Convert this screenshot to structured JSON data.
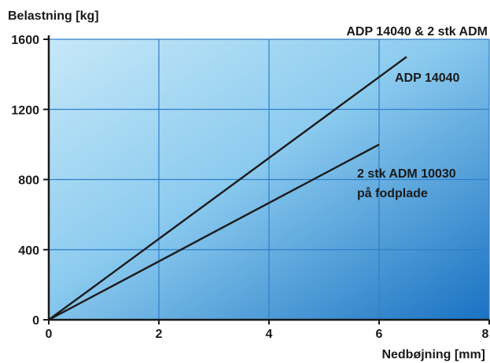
{
  "chart_data": {
    "type": "line",
    "title": "ADP 14040 & 2 stk ADM",
    "ylabel": "Belastning [kg]",
    "xlabel": "Nedbøjning [mm]",
    "xlim": [
      0,
      8
    ],
    "ylim": [
      0,
      1600
    ],
    "xticks": [
      "0",
      "2",
      "4",
      "6",
      "8"
    ],
    "yticks": [
      "0",
      "400",
      "800",
      "1200",
      "1600"
    ],
    "grid": true,
    "series": [
      {
        "name": "ADP 14040",
        "x": [
          0,
          6.5
        ],
        "y": [
          0,
          1500
        ]
      },
      {
        "name": "2 stk ADM 10030",
        "name_line2": "på fodplade",
        "x": [
          0,
          6
        ],
        "y": [
          0,
          1000
        ]
      }
    ],
    "colors": {
      "line": "#1a1a1a",
      "grid": "#2f7fc9",
      "bg_light": "#bfe4f6",
      "bg_dark": "#1670c0"
    }
  }
}
